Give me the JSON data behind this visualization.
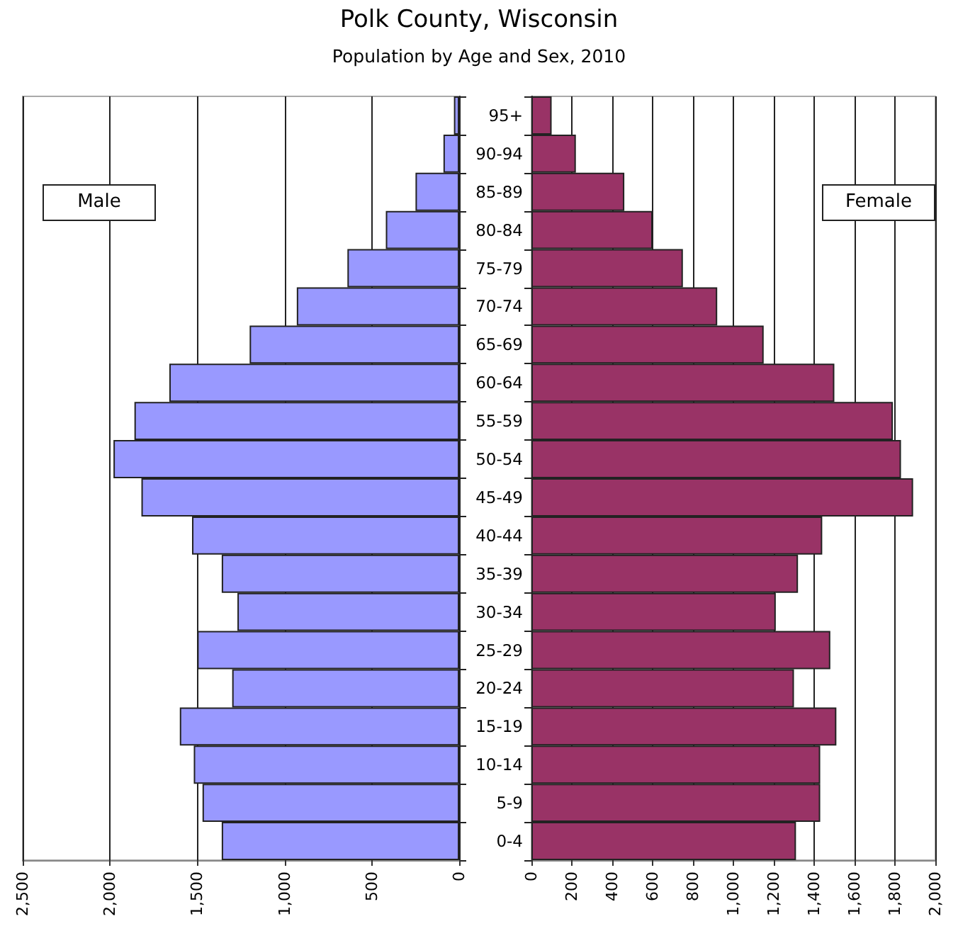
{
  "chart_data": [
    {
      "type": "bar",
      "title": "Polk County, Wisconsin",
      "subtitle": "Population by Age and Sex, 2010",
      "orientation": "horizontal",
      "categories": [
        null,
        null,
        null,
        null,
        null,
        null,
        null,
        null,
        null,
        null,
        null,
        null,
        null,
        null,
        null,
        null,
        null,
        null,
        null,
        null
      ],
      "values": [
        30,
        90,
        250,
        420,
        640,
        930,
        1200,
        1660,
        1860,
        1980,
        1820,
        1530,
        1360,
        1270,
        1500,
        1300,
        1600,
        1520,
        1470,
        1360
      ],
      "color": "#9999ff",
      "annotations": [
        "Male"
      ],
      "xlim": [
        2500,
        0
      ],
      "xticks": [
        {
          "value": 2500,
          "label": "2,500"
        },
        {
          "value": 2000,
          "label": "2,000"
        },
        {
          "value": 1500,
          "label": "1,500"
        },
        {
          "value": 1000,
          "label": "1,000"
        },
        500,
        0
      ],
      "grid": "x",
      "tick_labels": "x"
    },
    {
      "type": "bar",
      "orientation": "horizontal",
      "categories": [
        "95+",
        "90-94",
        "85-89",
        "80-84",
        "75-79",
        "70-74",
        "65-69",
        "60-64",
        "55-59",
        "50-54",
        "45-49",
        "40-44",
        "35-39",
        "30-34",
        "25-29",
        "20-24",
        "15-19",
        "10-14",
        "5-9",
        "0-4"
      ],
      "values": [
        100,
        220,
        460,
        600,
        750,
        920,
        1150,
        1500,
        1790,
        1830,
        1890,
        1440,
        1320,
        1210,
        1480,
        1300,
        1510,
        1430,
        1430,
        1310
      ],
      "color": "#993366",
      "annotations": [
        "Female"
      ],
      "xlim": [
        0,
        2000
      ],
      "xticks": [
        0,
        200,
        400,
        600,
        800,
        {
          "value": 1000,
          "label": "1,000"
        },
        {
          "value": 1200,
          "label": "1,200"
        },
        {
          "value": 1400,
          "label": "1,400"
        },
        {
          "value": 1600,
          "label": "1,600"
        },
        {
          "value": 1800,
          "label": "1,800"
        },
        {
          "value": 2000,
          "label": "2,000"
        }
      ],
      "grid": "x"
    }
  ]
}
